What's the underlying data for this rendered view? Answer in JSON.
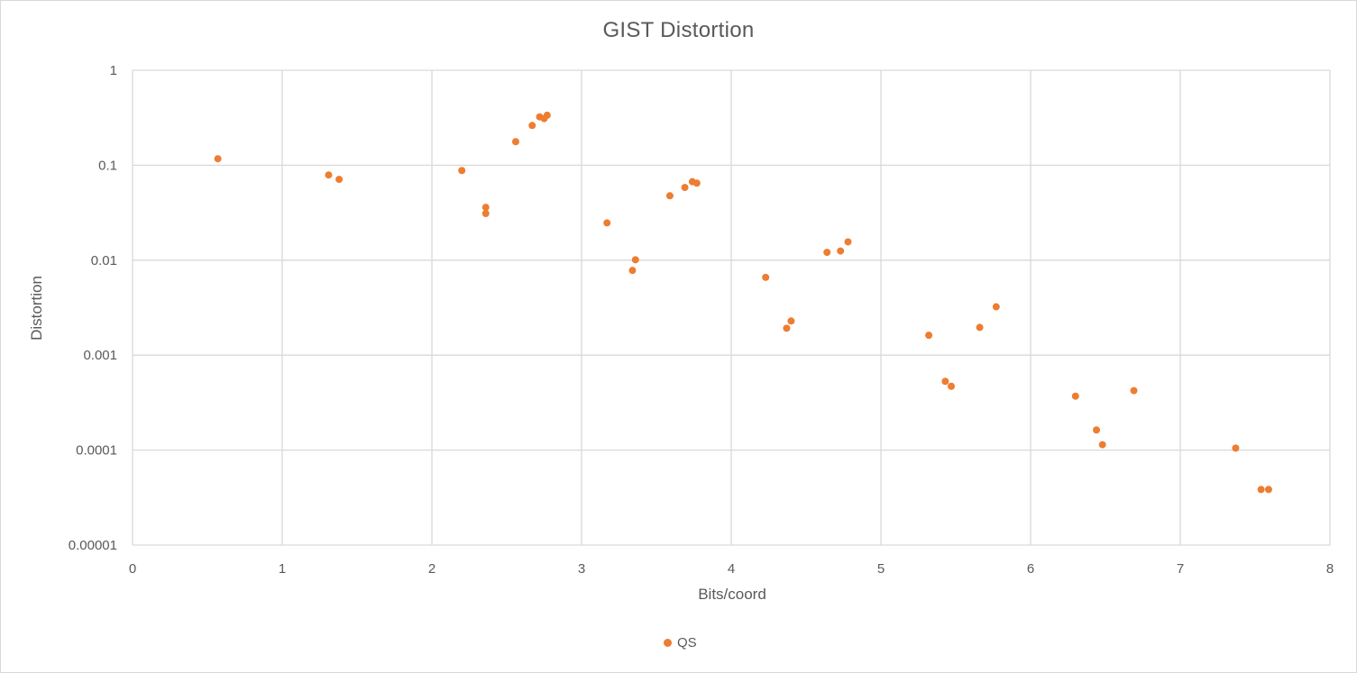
{
  "chart_data": {
    "type": "scatter",
    "title": "GIST Distortion",
    "xlabel": "Bits/coord",
    "ylabel": "Distortion",
    "xlim": [
      0,
      8
    ],
    "ylim": [
      1e-05,
      1
    ],
    "yscale": "log",
    "grid": true,
    "legend_position": "bottom",
    "x_ticks": [
      "0",
      "1",
      "2",
      "3",
      "4",
      "5",
      "6",
      "7",
      "8"
    ],
    "y_ticks": [
      "1",
      "0.1",
      "0.01",
      "0.001",
      "0.0001",
      "0.00001"
    ],
    "series": [
      {
        "name": "QS",
        "color": "#ed7d31",
        "points": [
          [
            0.57,
            0.117
          ],
          [
            1.31,
            0.079
          ],
          [
            1.38,
            0.071
          ],
          [
            2.2,
            0.088
          ],
          [
            2.36,
            0.036
          ],
          [
            2.36,
            0.031
          ],
          [
            2.56,
            0.177
          ],
          [
            2.67,
            0.262
          ],
          [
            2.72,
            0.323
          ],
          [
            2.75,
            0.31
          ],
          [
            2.77,
            0.336
          ],
          [
            3.17,
            0.0247
          ],
          [
            3.34,
            0.0078
          ],
          [
            3.36,
            0.0101
          ],
          [
            3.59,
            0.0477
          ],
          [
            3.69,
            0.0583
          ],
          [
            3.74,
            0.0671
          ],
          [
            3.77,
            0.0648
          ],
          [
            4.23,
            0.0066
          ],
          [
            4.37,
            0.00192
          ],
          [
            4.4,
            0.00229
          ],
          [
            4.64,
            0.0121
          ],
          [
            4.73,
            0.0125
          ],
          [
            4.78,
            0.0156
          ],
          [
            5.32,
            0.00162
          ],
          [
            5.43,
            0.00053
          ],
          [
            5.47,
            0.00047
          ],
          [
            5.66,
            0.00196
          ],
          [
            5.77,
            0.00323
          ],
          [
            6.3,
            0.00037
          ],
          [
            6.44,
            0.000163
          ],
          [
            6.48,
            0.000114
          ],
          [
            6.69,
            0.000423
          ],
          [
            7.37,
            0.000105
          ],
          [
            7.54,
            3.85e-05
          ],
          [
            7.59,
            3.85e-05
          ]
        ]
      }
    ]
  }
}
